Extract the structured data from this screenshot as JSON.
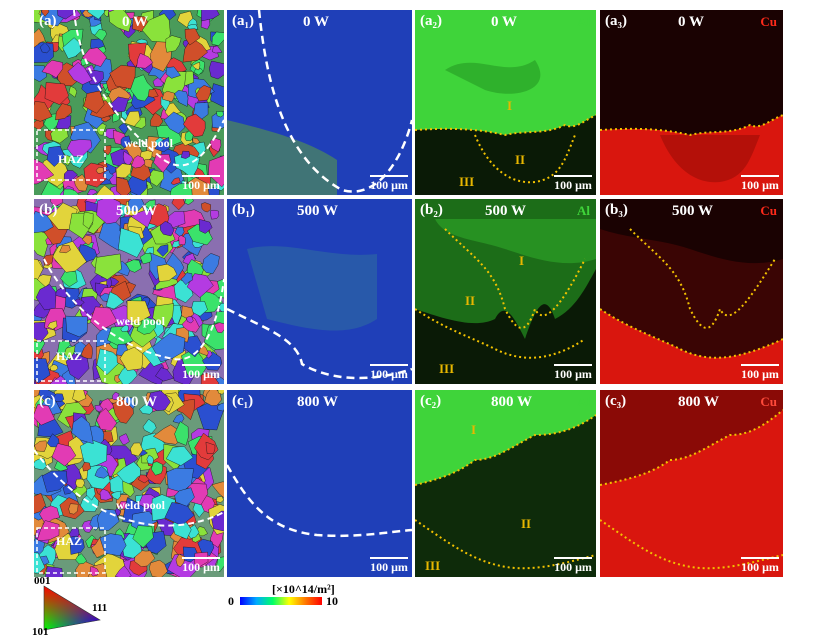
{
  "rows": [
    {
      "power": "0 W",
      "labels": {
        "ebsd": "(a)",
        "kam": "(a₁)",
        "al": "(a₂)",
        "cu": "(a₃)"
      }
    },
    {
      "power": "500 W",
      "labels": {
        "ebsd": "(b)",
        "kam": "(b₁)",
        "al": "(b₂)",
        "cu": "(b₃)"
      }
    },
    {
      "power": "800 W",
      "labels": {
        "ebsd": "(c)",
        "kam": "(c₁)",
        "al": "(c₂)",
        "cu": "(c₃)"
      }
    }
  ],
  "annotations": {
    "weld_pool": "weld pool",
    "haz": "HAZ",
    "zone_1": "I",
    "zone_2": "II",
    "zone_3": "III",
    "element_al": "Al",
    "element_cu": "Cu",
    "scale_bar": "100 μm"
  },
  "ipf_legend": {
    "top": "001",
    "bottom_left": "101",
    "right": "111"
  },
  "colorbar": {
    "unit": "[×10^14/m²]",
    "min": "0",
    "max": "10"
  },
  "colors": {
    "al_bright": "#3fd43a",
    "al_dark": "#0a1a06",
    "cu_bright": "#d9160e",
    "cu_dark": "#1a0202",
    "kam_base": "#1f3fb8",
    "zone_line": "#f2c200"
  }
}
